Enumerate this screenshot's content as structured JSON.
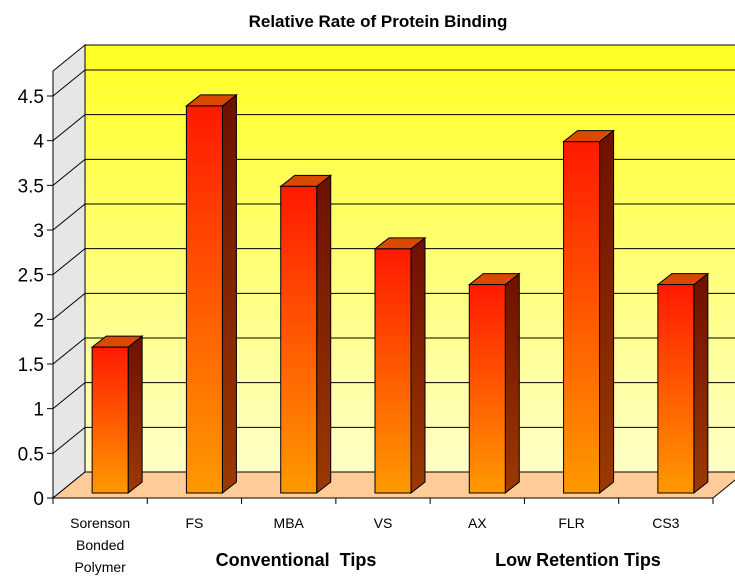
{
  "chart_data": {
    "type": "bar",
    "title": "Relative Rate of Protein Binding",
    "categories": [
      [
        "Sorenson",
        "Bonded",
        "Polymer"
      ],
      [
        "FS"
      ],
      [
        "MBA"
      ],
      [
        "VS"
      ],
      [
        "AX"
      ],
      [
        "FLR"
      ],
      [
        "CS3"
      ]
    ],
    "values": [
      1.7,
      4.4,
      3.5,
      2.8,
      2.4,
      4.0,
      2.4
    ],
    "y_ticks": [
      "0",
      "0.5",
      "1",
      "1.5",
      "2",
      "2.5",
      "3",
      "3.5",
      "4",
      "4.5"
    ],
    "ylim": [
      0,
      4.5
    ],
    "group_labels": [
      "Conventional  Tips",
      "Low Retention Tips"
    ],
    "grid": true,
    "legend": "none",
    "colors": {
      "wall_top": "#ffff22",
      "wall_bottom": "#ffffc8",
      "floor": "#ffcc99",
      "bar_top": "#ff1a00",
      "bar_bottom": "#ff9900",
      "bar_side": "#7a1400",
      "bar_cap": "#d94a00"
    }
  }
}
